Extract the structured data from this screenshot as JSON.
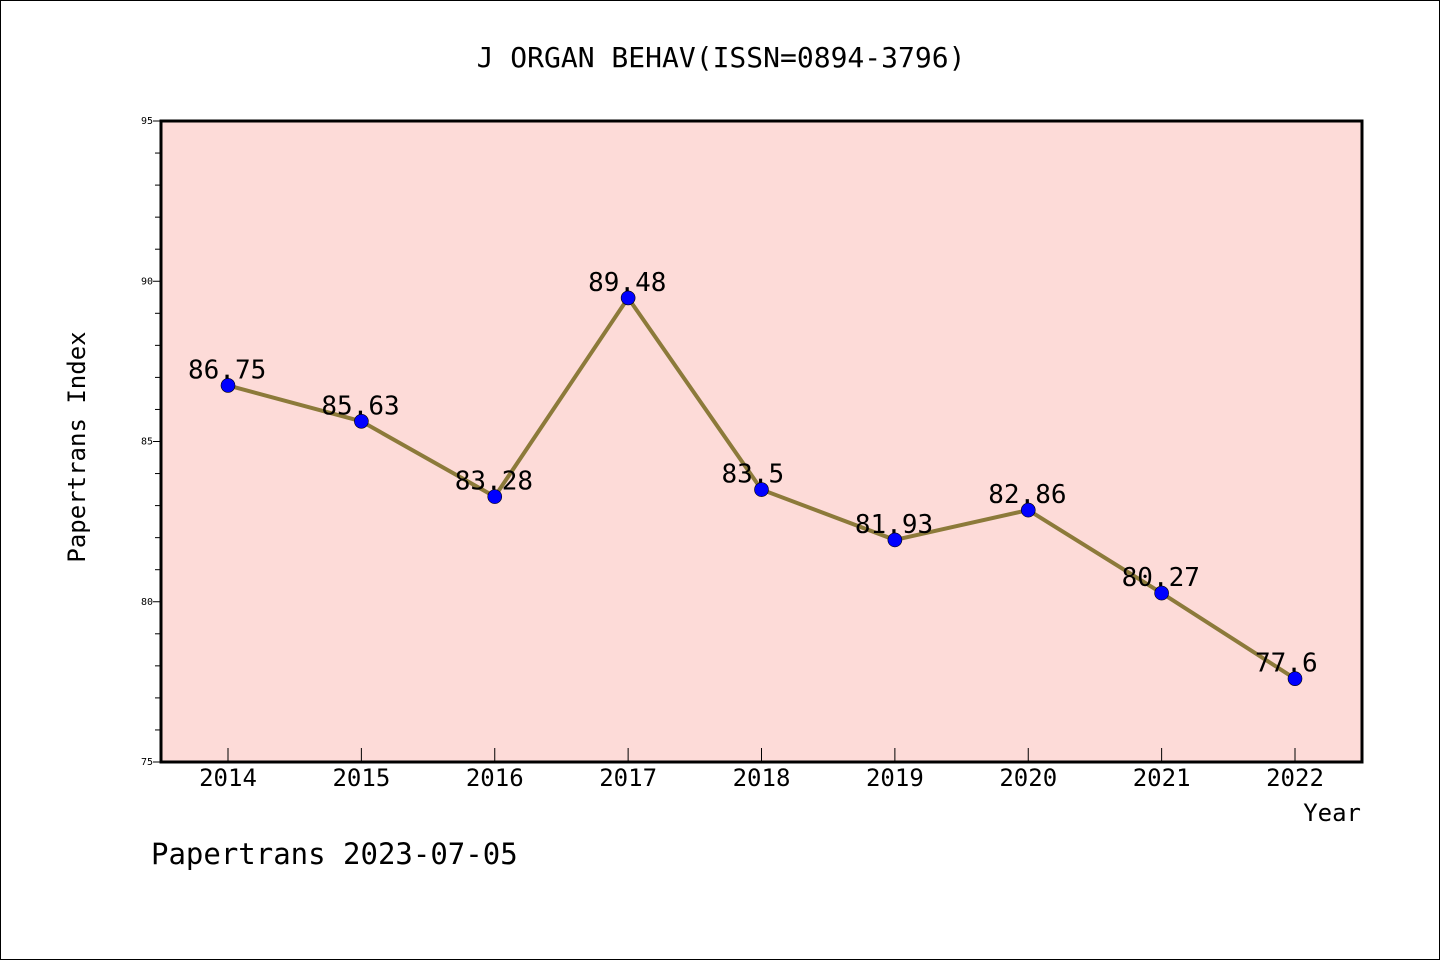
{
  "chart_data": {
    "type": "line",
    "title": "J ORGAN BEHAV(ISSN=0894-3796)",
    "xlabel": "Year",
    "ylabel": "Papertrans Index",
    "footer": "Papertrans 2023-07-05",
    "categories": [
      "2014",
      "2015",
      "2016",
      "2017",
      "2018",
      "2019",
      "2020",
      "2021",
      "2022"
    ],
    "series": [
      {
        "values": [
          86.75,
          85.63,
          83.28,
          89.48,
          83.5,
          81.93,
          82.86,
          80.27,
          77.6
        ],
        "labels": [
          "86.75",
          "85.63",
          "83.28",
          "89.48",
          "83.5",
          "81.93",
          "82.86",
          "80.27",
          "77.6"
        ]
      }
    ],
    "ylim": [
      75,
      95
    ],
    "yticks": [
      "75",
      "80",
      "85",
      "90",
      "95"
    ],
    "grid": false,
    "legend": "none",
    "colors": {
      "plot_background": "#fddbd8",
      "line": "#8c7a3a",
      "marker": "#0000ff"
    }
  }
}
